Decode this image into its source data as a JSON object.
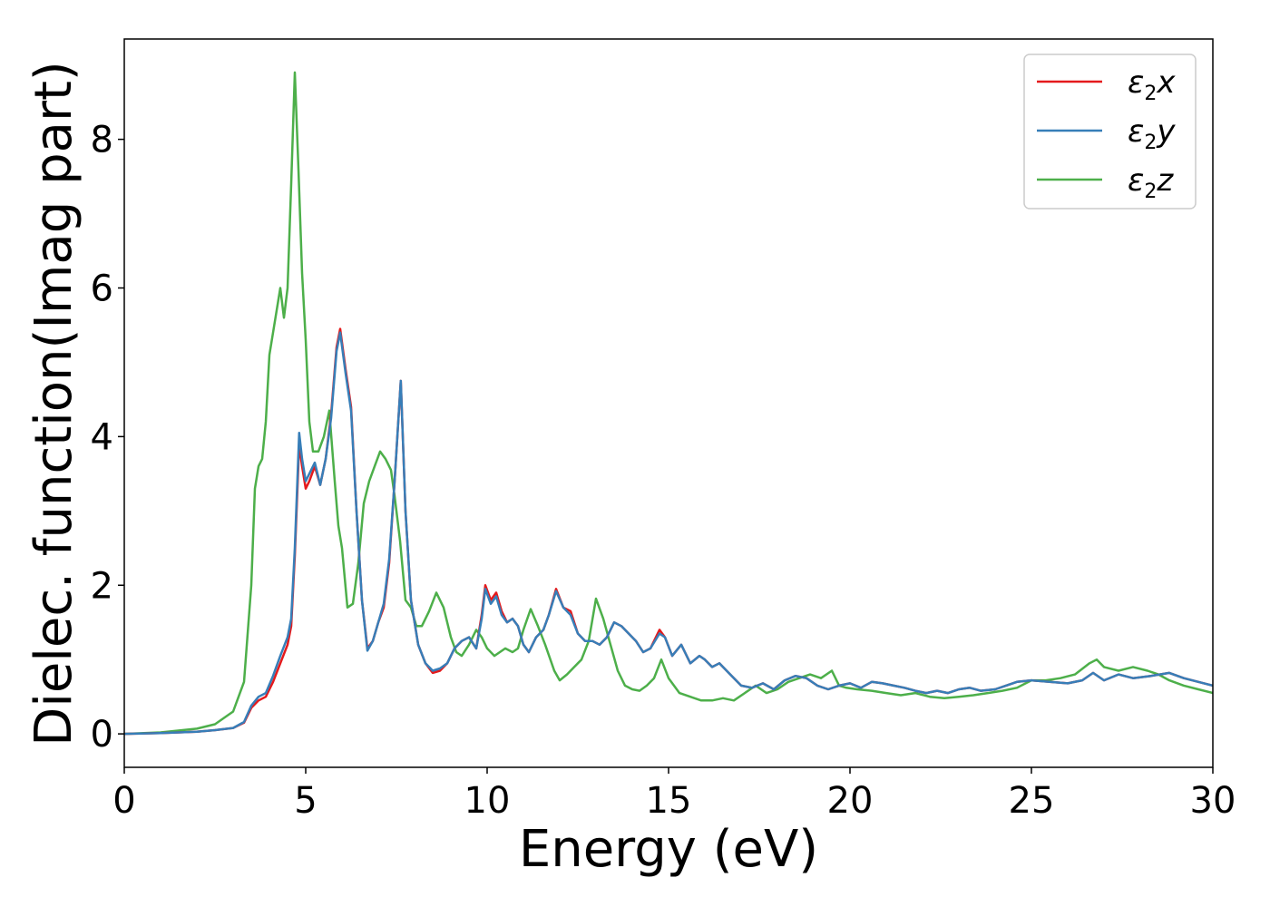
{
  "chart_data": {
    "type": "line",
    "title": "",
    "xlabel": "Energy (eV)",
    "ylabel": "Dielec. function(Imag part)",
    "xlim": [
      0,
      30
    ],
    "ylim": [
      -0.45,
      9.35
    ],
    "xticks": [
      0,
      5,
      10,
      15,
      20,
      25,
      30
    ],
    "yticks": [
      0,
      2,
      4,
      6,
      8
    ],
    "grid": false,
    "legend_position": "top-right",
    "series": [
      {
        "name": "ε2x",
        "legend": {
          "base": "ε",
          "sub": "2",
          "tail": "x"
        },
        "color": "#e41a1c",
        "x": [
          0,
          1,
          2,
          2.5,
          3,
          3.3,
          3.5,
          3.7,
          3.9,
          4.1,
          4.3,
          4.5,
          4.6,
          4.7,
          4.82,
          4.9,
          5.0,
          5.1,
          5.25,
          5.4,
          5.55,
          5.7,
          5.85,
          5.95,
          6.1,
          6.25,
          6.4,
          6.55,
          6.7,
          6.85,
          7.0,
          7.15,
          7.3,
          7.45,
          7.62,
          7.75,
          7.9,
          8.1,
          8.3,
          8.5,
          8.7,
          8.9,
          9.1,
          9.3,
          9.5,
          9.7,
          9.85,
          9.95,
          10.1,
          10.25,
          10.4,
          10.55,
          10.7,
          10.85,
          11.0,
          11.15,
          11.35,
          11.55,
          11.7,
          11.9,
          12.1,
          12.3,
          12.5,
          12.7,
          12.9,
          13.1,
          13.3,
          13.5,
          13.7,
          13.9,
          14.1,
          14.3,
          14.5,
          14.75,
          14.9,
          15.1,
          15.35,
          15.6,
          15.85,
          16.0,
          16.2,
          16.4,
          16.7,
          17.0,
          17.3,
          17.6,
          17.9,
          18.2,
          18.5,
          18.8,
          19.1,
          19.4,
          19.7,
          20.0,
          20.3,
          20.6,
          20.9,
          21.2,
          21.5,
          21.8,
          22.1,
          22.4,
          22.7,
          23.0,
          23.3,
          23.6,
          24.0,
          24.3,
          24.6,
          25.0,
          25.5,
          26.0,
          26.4,
          26.7,
          27.0,
          27.4,
          27.8,
          28.3,
          28.8,
          29.2,
          29.6,
          30.0
        ],
        "values": [
          0.0,
          0.01,
          0.03,
          0.05,
          0.08,
          0.15,
          0.35,
          0.45,
          0.5,
          0.7,
          0.95,
          1.2,
          1.45,
          2.4,
          3.9,
          3.6,
          3.3,
          3.4,
          3.6,
          3.35,
          3.7,
          4.3,
          5.2,
          5.45,
          4.9,
          4.4,
          3.0,
          1.8,
          1.15,
          1.25,
          1.5,
          1.7,
          2.3,
          3.4,
          4.75,
          3.0,
          1.8,
          1.2,
          0.95,
          0.82,
          0.85,
          0.95,
          1.15,
          1.25,
          1.3,
          1.15,
          1.6,
          2.0,
          1.8,
          1.9,
          1.65,
          1.5,
          1.55,
          1.45,
          1.2,
          1.1,
          1.3,
          1.4,
          1.6,
          1.95,
          1.7,
          1.65,
          1.35,
          1.25,
          1.25,
          1.2,
          1.3,
          1.5,
          1.45,
          1.35,
          1.25,
          1.1,
          1.15,
          1.4,
          1.3,
          1.05,
          1.2,
          0.95,
          1.05,
          1.0,
          0.9,
          0.95,
          0.8,
          0.65,
          0.62,
          0.68,
          0.6,
          0.72,
          0.78,
          0.75,
          0.65,
          0.6,
          0.65,
          0.68,
          0.62,
          0.7,
          0.68,
          0.65,
          0.62,
          0.58,
          0.55,
          0.58,
          0.55,
          0.6,
          0.62,
          0.58,
          0.6,
          0.65,
          0.7,
          0.72,
          0.7,
          0.68,
          0.72,
          0.82,
          0.72,
          0.8,
          0.75,
          0.78,
          0.82,
          0.75,
          0.7,
          0.65
        ]
      },
      {
        "name": "ε2y",
        "legend": {
          "base": "ε",
          "sub": "2",
          "tail": "y"
        },
        "color": "#377eb8",
        "x": [
          0,
          1,
          2,
          2.5,
          3,
          3.3,
          3.5,
          3.7,
          3.9,
          4.1,
          4.3,
          4.5,
          4.6,
          4.7,
          4.82,
          4.9,
          5.0,
          5.1,
          5.25,
          5.4,
          5.55,
          5.7,
          5.85,
          5.95,
          6.1,
          6.25,
          6.4,
          6.55,
          6.7,
          6.85,
          7.0,
          7.15,
          7.3,
          7.45,
          7.62,
          7.75,
          7.9,
          8.1,
          8.3,
          8.5,
          8.7,
          8.9,
          9.1,
          9.3,
          9.5,
          9.7,
          9.85,
          9.95,
          10.1,
          10.25,
          10.4,
          10.55,
          10.7,
          10.85,
          11.0,
          11.15,
          11.35,
          11.55,
          11.7,
          11.9,
          12.1,
          12.3,
          12.5,
          12.7,
          12.9,
          13.1,
          13.3,
          13.5,
          13.7,
          13.9,
          14.1,
          14.3,
          14.5,
          14.75,
          14.9,
          15.1,
          15.35,
          15.6,
          15.85,
          16.0,
          16.2,
          16.4,
          16.7,
          17.0,
          17.3,
          17.6,
          17.9,
          18.2,
          18.5,
          18.8,
          19.1,
          19.4,
          19.7,
          20.0,
          20.3,
          20.6,
          20.9,
          21.2,
          21.5,
          21.8,
          22.1,
          22.4,
          22.7,
          23.0,
          23.3,
          23.6,
          24.0,
          24.3,
          24.6,
          25.0,
          25.5,
          26.0,
          26.4,
          26.7,
          27.0,
          27.4,
          27.8,
          28.3,
          28.8,
          29.2,
          29.6,
          30.0
        ],
        "values": [
          0.0,
          0.01,
          0.03,
          0.05,
          0.08,
          0.16,
          0.38,
          0.5,
          0.55,
          0.78,
          1.05,
          1.3,
          1.55,
          2.5,
          4.05,
          3.7,
          3.4,
          3.5,
          3.65,
          3.35,
          3.7,
          4.25,
          5.15,
          5.4,
          4.85,
          4.35,
          3.0,
          1.8,
          1.12,
          1.25,
          1.5,
          1.75,
          2.35,
          3.4,
          4.75,
          3.0,
          1.8,
          1.2,
          0.95,
          0.85,
          0.88,
          0.95,
          1.15,
          1.25,
          1.3,
          1.15,
          1.55,
          1.95,
          1.75,
          1.85,
          1.6,
          1.5,
          1.55,
          1.45,
          1.2,
          1.1,
          1.3,
          1.4,
          1.6,
          1.92,
          1.7,
          1.6,
          1.35,
          1.25,
          1.25,
          1.2,
          1.3,
          1.5,
          1.45,
          1.35,
          1.25,
          1.1,
          1.15,
          1.35,
          1.3,
          1.05,
          1.2,
          0.95,
          1.05,
          1.0,
          0.9,
          0.95,
          0.8,
          0.65,
          0.62,
          0.68,
          0.6,
          0.72,
          0.78,
          0.75,
          0.65,
          0.6,
          0.65,
          0.68,
          0.62,
          0.7,
          0.68,
          0.65,
          0.62,
          0.58,
          0.55,
          0.58,
          0.55,
          0.6,
          0.62,
          0.58,
          0.6,
          0.65,
          0.7,
          0.72,
          0.7,
          0.68,
          0.72,
          0.82,
          0.72,
          0.8,
          0.75,
          0.78,
          0.82,
          0.75,
          0.7,
          0.65
        ]
      },
      {
        "name": "ε2z",
        "legend": {
          "base": "ε",
          "sub": "2",
          "tail": "z"
        },
        "color": "#4daf4a",
        "x": [
          0,
          1,
          2,
          2.5,
          3,
          3.3,
          3.5,
          3.6,
          3.7,
          3.8,
          3.9,
          4.0,
          4.1,
          4.2,
          4.3,
          4.4,
          4.5,
          4.6,
          4.7,
          4.8,
          4.9,
          5.0,
          5.1,
          5.2,
          5.35,
          5.5,
          5.65,
          5.8,
          5.9,
          6.0,
          6.15,
          6.3,
          6.45,
          6.6,
          6.75,
          6.9,
          7.05,
          7.2,
          7.35,
          7.45,
          7.6,
          7.75,
          7.9,
          8.05,
          8.2,
          8.4,
          8.6,
          8.8,
          9.0,
          9.15,
          9.3,
          9.5,
          9.7,
          9.85,
          10.0,
          10.2,
          10.35,
          10.5,
          10.7,
          10.85,
          11.0,
          11.2,
          11.4,
          11.6,
          11.85,
          12.0,
          12.2,
          12.4,
          12.6,
          12.8,
          13.0,
          13.2,
          13.4,
          13.6,
          13.8,
          14.0,
          14.2,
          14.4,
          14.6,
          14.8,
          15.0,
          15.3,
          15.6,
          15.9,
          16.2,
          16.5,
          16.8,
          17.1,
          17.4,
          17.7,
          18.0,
          18.3,
          18.6,
          18.9,
          19.2,
          19.5,
          19.7,
          19.9,
          20.2,
          20.6,
          21.0,
          21.4,
          21.8,
          22.2,
          22.6,
          23.0,
          23.4,
          23.8,
          24.2,
          24.6,
          25.0,
          25.4,
          25.8,
          26.2,
          26.6,
          26.8,
          27.0,
          27.4,
          27.8,
          28.2,
          28.5,
          28.8,
          29.2,
          29.6,
          30.0
        ],
        "values": [
          0.0,
          0.02,
          0.07,
          0.13,
          0.3,
          0.7,
          2.0,
          3.3,
          3.6,
          3.7,
          4.2,
          5.1,
          5.4,
          5.7,
          6.0,
          5.6,
          6.0,
          7.4,
          8.9,
          7.6,
          6.2,
          5.3,
          4.2,
          3.8,
          3.8,
          4.0,
          4.35,
          3.4,
          2.8,
          2.5,
          1.7,
          1.75,
          2.3,
          3.1,
          3.4,
          3.6,
          3.8,
          3.7,
          3.55,
          3.2,
          2.6,
          1.8,
          1.7,
          1.45,
          1.45,
          1.65,
          1.9,
          1.7,
          1.3,
          1.1,
          1.05,
          1.2,
          1.4,
          1.3,
          1.15,
          1.05,
          1.1,
          1.15,
          1.1,
          1.15,
          1.4,
          1.68,
          1.45,
          1.2,
          0.85,
          0.72,
          0.8,
          0.9,
          1.0,
          1.25,
          1.82,
          1.55,
          1.2,
          0.85,
          0.65,
          0.6,
          0.58,
          0.65,
          0.75,
          1.0,
          0.75,
          0.55,
          0.5,
          0.45,
          0.45,
          0.48,
          0.45,
          0.55,
          0.65,
          0.55,
          0.6,
          0.7,
          0.75,
          0.8,
          0.75,
          0.85,
          0.65,
          0.62,
          0.6,
          0.58,
          0.55,
          0.52,
          0.55,
          0.5,
          0.48,
          0.5,
          0.52,
          0.55,
          0.58,
          0.62,
          0.72,
          0.72,
          0.75,
          0.8,
          0.95,
          1.0,
          0.9,
          0.85,
          0.9,
          0.85,
          0.8,
          0.72,
          0.65,
          0.6,
          0.55
        ]
      }
    ]
  }
}
